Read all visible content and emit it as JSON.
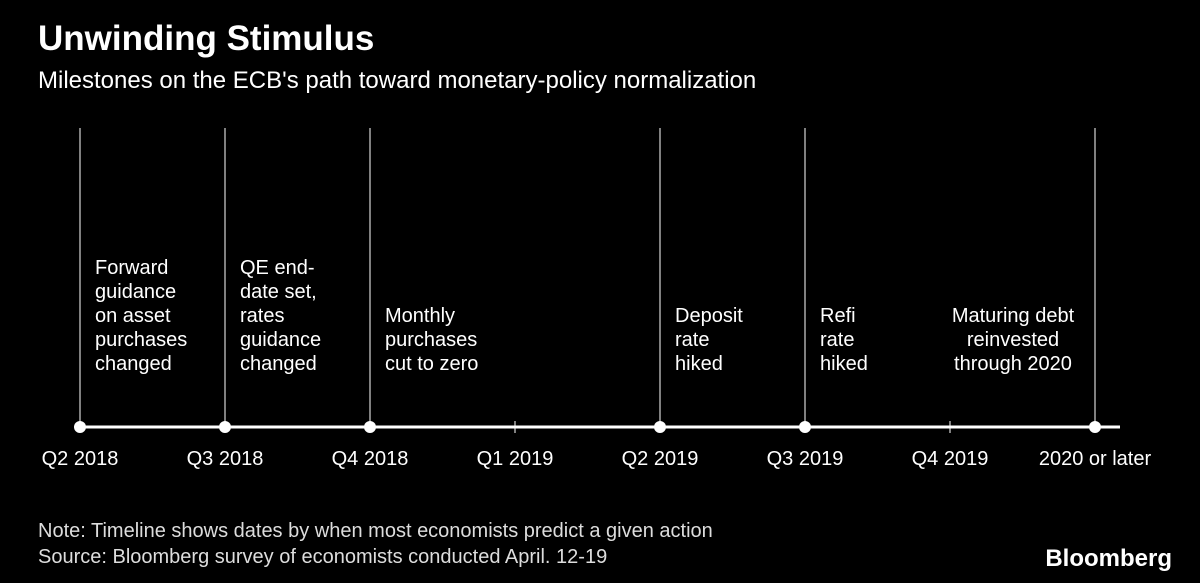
{
  "header": {
    "title": "Unwinding Stimulus",
    "subtitle": "Milestones on the ECB's path toward monetary-policy normalization"
  },
  "timeline": {
    "stops": [
      {
        "label": "Q2 2018",
        "event": [
          "Forward",
          "guidance",
          "on asset",
          "purchases",
          "changed"
        ]
      },
      {
        "label": "Q3 2018",
        "event": [
          "QE end-",
          "date set,",
          "rates",
          "guidance",
          "changed"
        ]
      },
      {
        "label": "Q4 2018",
        "event": [
          "Monthly",
          "purchases",
          "cut to zero"
        ]
      },
      {
        "label": "Q1 2019"
      },
      {
        "label": "Q2 2019",
        "event": [
          "Deposit",
          "rate",
          "hiked"
        ]
      },
      {
        "label": "Q3 2019",
        "event": [
          "Refi",
          "rate",
          "hiked"
        ]
      },
      {
        "label": "Q4 2019"
      },
      {
        "label": "2020 or later",
        "event": [
          "Maturing debt",
          "reinvested",
          "through 2020"
        ]
      }
    ]
  },
  "footer": {
    "note": "Note: Timeline shows dates by when most economists predict a given action",
    "source": "Source: Bloomberg survey of economists conducted April. 12-19",
    "brand": "Bloomberg"
  }
}
